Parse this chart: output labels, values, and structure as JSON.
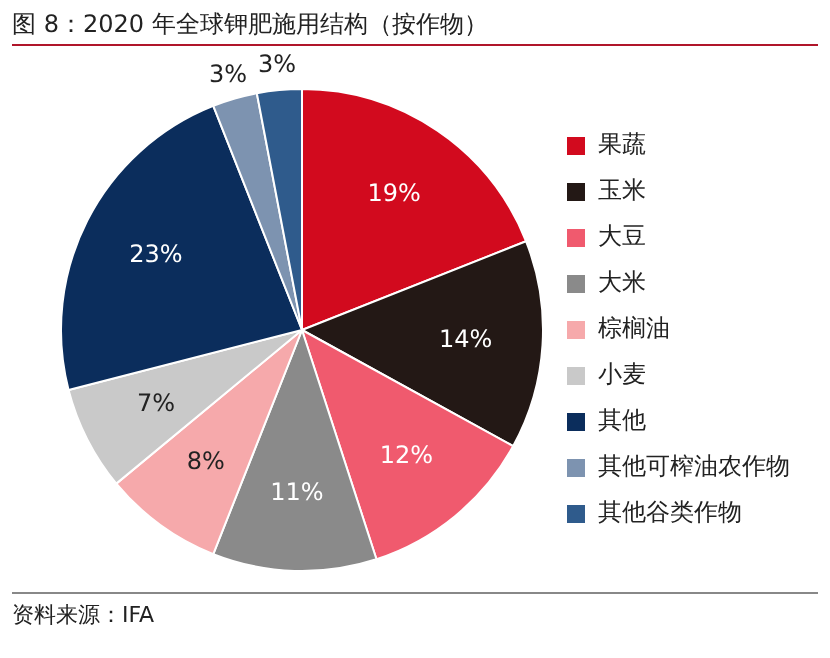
{
  "chart_data": {
    "type": "pie",
    "title": "图 8：2020 年全球钾肥施用结构（按作物）",
    "categories": [
      "果蔬",
      "玉米",
      "大豆",
      "大米",
      "棕榈油",
      "小麦",
      "其他",
      "其他可榨油农作物",
      "其他谷类作物"
    ],
    "values": [
      19,
      14,
      12,
      11,
      8,
      7,
      23,
      3,
      3
    ],
    "colors": [
      "#d20a1e",
      "#231815",
      "#f05a6e",
      "#8a8a8a",
      "#f6a9ab",
      "#c9c9c9",
      "#0b2d5c",
      "#7d93b0",
      "#2f5b8c"
    ],
    "value_labels": [
      "19%",
      "14%",
      "12%",
      "11%",
      "8%",
      "7%",
      "23%",
      "3%",
      "3%"
    ],
    "legend": "right",
    "annotations": [
      "资料来源：IFA"
    ]
  }
}
